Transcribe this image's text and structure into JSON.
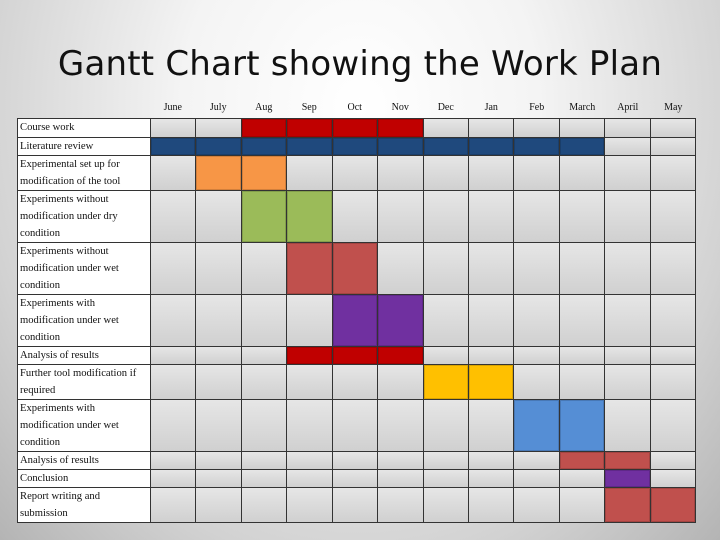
{
  "page": {
    "title": "Gantt Chart showing the Work Plan"
  },
  "chart_data": {
    "type": "gantt",
    "title": "Gantt Chart showing the Work Plan",
    "months": [
      "June",
      "July",
      "Aug",
      "Sep",
      "Oct",
      "Nov",
      "Dec",
      "Jan",
      "Feb",
      "March",
      "April",
      "May"
    ],
    "tasks": [
      {
        "label": "Course work",
        "start": "Aug",
        "end": "Nov",
        "color": "#c00000",
        "lines": 1
      },
      {
        "label": "Literature review",
        "start": "June",
        "end": "March",
        "color": "#1f497d",
        "lines": 1
      },
      {
        "label": "Experimental set up for\nmodification of the tool",
        "start": "July",
        "end": "Aug",
        "color": "#f79646",
        "lines": 2
      },
      {
        "label": "Experiments without\nmodification under dry\ncondition",
        "start": "Aug",
        "end": "Sep",
        "color": "#9bbb59",
        "lines": 3
      },
      {
        "label": "Experiments without\nmodification under wet\ncondition",
        "start": "Sep",
        "end": "Oct",
        "color": "#c0504d",
        "lines": 3
      },
      {
        "label": "Experiments with\nmodification under wet\ncondition",
        "start": "Oct",
        "end": "Nov",
        "color": "#7030a0",
        "lines": 3
      },
      {
        "label": "Analysis of results",
        "start": "Sep",
        "end": "Nov",
        "color": "#c00000",
        "lines": 1
      },
      {
        "label": "Further tool modification if\nrequired",
        "start": "Dec",
        "end": "Jan",
        "color": "#ffc000",
        "lines": 2
      },
      {
        "label": "Experiments with\nmodification under wet\ncondition",
        "start": "Feb",
        "end": "March",
        "color": "#558ed5",
        "lines": 3
      },
      {
        "label": "Analysis of results",
        "start": "March",
        "end": "April",
        "color": "#c0504d",
        "lines": 1
      },
      {
        "label": "Conclusion",
        "start": "April",
        "end": "April",
        "color": "#7030a0",
        "lines": 1
      },
      {
        "label": "Report writing and\nsubmission",
        "start": "April",
        "end": "May",
        "color": "#c0504d",
        "lines": 2
      }
    ]
  }
}
